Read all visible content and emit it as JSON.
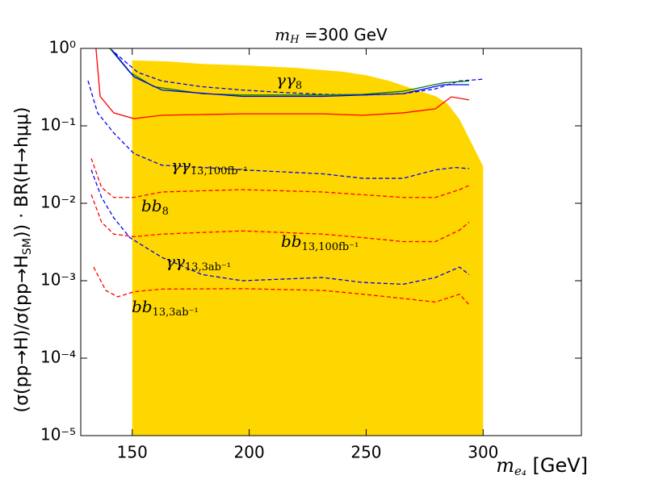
{
  "chart_data": {
    "type": "line",
    "title": {
      "text": "m",
      "sub": "H",
      "rest": " =300 GeV"
    },
    "x_label": {
      "text": "m",
      "sub": "e₄",
      "rest": " [GeV]"
    },
    "y_label": {
      "text": "(σ(pp→H)/σ(pp→H",
      "sub": "SM",
      "rest": ")) · BR(H→hμμ)"
    },
    "xlim": [
      128,
      342
    ],
    "ylim": [
      1e-05,
      1
    ],
    "log_y": true,
    "xticks": [
      150,
      200,
      250,
      300
    ],
    "yticks": [
      {
        "value": 1e-05,
        "label": "10⁻⁵"
      },
      {
        "value": 0.0001,
        "label": "10⁻⁴"
      },
      {
        "value": 0.001,
        "label": "10⁻³"
      },
      {
        "value": 0.01,
        "label": "10⁻²"
      },
      {
        "value": 0.1,
        "label": "10⁻¹"
      },
      {
        "value": 1,
        "label": "10⁰"
      }
    ],
    "scatter_region": {
      "color": "#ffd700",
      "x": [
        150,
        165,
        180,
        200,
        220,
        240,
        250,
        260,
        270,
        280,
        285,
        290,
        295,
        300
      ],
      "values": [
        0.7,
        0.68,
        0.63,
        0.6,
        0.56,
        0.5,
        0.45,
        0.38,
        0.3,
        0.24,
        0.19,
        0.12,
        0.06,
        0.03
      ]
    },
    "series": [
      {
        "color": "#0000ff",
        "dash": true,
        "x": [
          140.4,
          152.4,
          162.7,
          179.9,
          197.1,
          214.3,
          231.4,
          248.6,
          265.8,
          279.6,
          289.9,
          299.8
        ],
        "values": [
          1,
          0.49,
          0.38,
          0.32,
          0.29,
          0.27,
          0.255,
          0.25,
          0.26,
          0.3,
          0.38,
          0.4
        ]
      },
      {
        "color": "#008000",
        "dash": false,
        "x": [
          140.4,
          149,
          159.3,
          179.9,
          197.1,
          231.4,
          248.6,
          265.8,
          283,
          294
        ],
        "values": [
          1,
          0.49,
          0.32,
          0.26,
          0.25,
          0.25,
          0.255,
          0.28,
          0.36,
          0.38
        ]
      },
      {
        "color": "#0000ff",
        "dash": false,
        "x": [
          141.4,
          150.7,
          162.7,
          197.1,
          231.4,
          265.8,
          283,
          294
        ],
        "values": [
          0.95,
          0.43,
          0.29,
          0.24,
          0.24,
          0.26,
          0.34,
          0.34
        ]
      },
      {
        "color": "#ff0000",
        "dash": false,
        "x": [
          134.5,
          136.3,
          142.1,
          150.7,
          162.7,
          197.1,
          231.4,
          248.6,
          265.8,
          279.6,
          286.4,
          294
        ],
        "values": [
          1,
          0.24,
          0.147,
          0.124,
          0.137,
          0.143,
          0.143,
          0.137,
          0.147,
          0.166,
          0.237,
          0.216
        ]
      },
      {
        "color": "#0000ff",
        "dash": true,
        "x": [
          131.1,
          135.2,
          142.1,
          150.7,
          162.7,
          179.9,
          197.1,
          231.4,
          248.6,
          265.8,
          279.6,
          288.1,
          294
        ],
        "values": [
          0.383,
          0.147,
          0.081,
          0.044,
          0.031,
          0.029,
          0.027,
          0.024,
          0.021,
          0.021,
          0.027,
          0.029,
          0.028
        ]
      },
      {
        "color": "#ff0000",
        "dash": true,
        "x": [
          132.5,
          136.9,
          142.1,
          150.7,
          162.7,
          197.1,
          231.4,
          248.6,
          265.8,
          279.6,
          289.9,
          294
        ],
        "values": [
          0.038,
          0.016,
          0.0119,
          0.0119,
          0.014,
          0.015,
          0.014,
          0.0129,
          0.0119,
          0.0119,
          0.015,
          0.017
        ]
      },
      {
        "color": "#0000ff",
        "dash": true,
        "x": [
          132.5,
          136.9,
          142.1,
          149,
          162.7,
          179.9,
          197.1,
          231.4,
          248.6,
          265.8,
          279.6,
          289.9,
          294
        ],
        "values": [
          0.027,
          0.0119,
          0.0065,
          0.0036,
          0.002,
          0.0012,
          0.001,
          0.0011,
          0.00095,
          0.0009,
          0.0011,
          0.0015,
          0.0012
        ]
      },
      {
        "color": "#ff0000",
        "dash": true,
        "x": [
          132.5,
          136.9,
          142.1,
          150.7,
          162.7,
          197.1,
          231.4,
          248.6,
          265.8,
          279.6,
          289.9,
          294
        ],
        "values": [
          0.013,
          0.0057,
          0.004,
          0.0037,
          0.004,
          0.0044,
          0.004,
          0.0036,
          0.0032,
          0.0032,
          0.0045,
          0.0057
        ]
      },
      {
        "color": "#ff0000",
        "dash": true,
        "x": [
          133.5,
          138.7,
          143.8,
          150.7,
          162.7,
          197.1,
          231.4,
          248.6,
          265.8,
          279.6,
          289.9,
          294
        ],
        "values": [
          0.0015,
          0.00075,
          0.00062,
          0.00072,
          0.00078,
          0.00079,
          0.00075,
          0.00067,
          0.00059,
          0.00053,
          0.00067,
          0.00049
        ]
      }
    ],
    "annotations": [
      {
        "text": "γγ",
        "sub": "8"
      },
      {
        "text": "γγ",
        "sub": "13,100fb⁻¹"
      },
      {
        "text": "bb",
        "sub": "8"
      },
      {
        "text": "bb",
        "sub": "13,100fb⁻¹"
      },
      {
        "text": "γγ",
        "sub": "13,3ab⁻¹"
      },
      {
        "text": "bb",
        "sub": "13,3ab⁻¹"
      }
    ]
  }
}
